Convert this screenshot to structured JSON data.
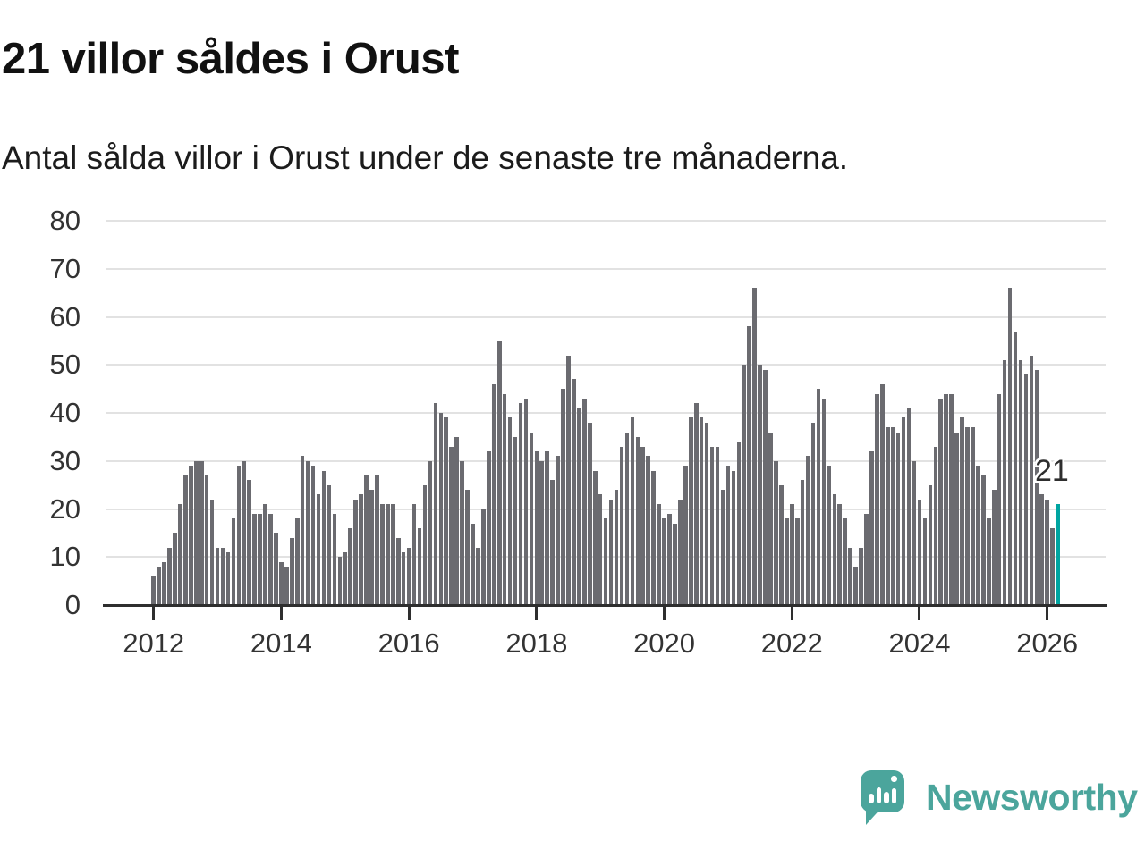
{
  "header": {
    "title": "21 villor såldes i Orust",
    "subtitle": "Antal sålda villor i Orust under de senaste tre månaderna."
  },
  "chart_data": {
    "type": "bar",
    "title": "21 villor såldes i Orust",
    "subtitle": "Antal sålda villor i Orust under de senaste tre månaderna.",
    "unit": "antal sålda villor (rullande 3 månader)",
    "start_month": "2012-01",
    "end_month": "2026-03",
    "values_by_year": {
      "2012": [
        6,
        8,
        9,
        12,
        15,
        21,
        27,
        29,
        30,
        30,
        27,
        22
      ],
      "2013": [
        12,
        12,
        11,
        18,
        29,
        30,
        26,
        19,
        19,
        21,
        19,
        15
      ],
      "2014": [
        9,
        8,
        14,
        18,
        31,
        30,
        29,
        23,
        28,
        25,
        19,
        10
      ],
      "2015": [
        11,
        16,
        22,
        23,
        27,
        24,
        27,
        21,
        21,
        21,
        14,
        11
      ],
      "2016": [
        12,
        21,
        16,
        25,
        30,
        42,
        40,
        39,
        33,
        35,
        30,
        24
      ],
      "2017": [
        17,
        12,
        20,
        32,
        46,
        55,
        44,
        39,
        35,
        42,
        43,
        36
      ],
      "2018": [
        32,
        30,
        32,
        26,
        31,
        45,
        52,
        47,
        41,
        43,
        38,
        28
      ],
      "2019": [
        23,
        18,
        22,
        24,
        33,
        36,
        39,
        35,
        33,
        31,
        28,
        21
      ],
      "2020": [
        18,
        19,
        17,
        22,
        29,
        39,
        42,
        39,
        38,
        33,
        33,
        24
      ],
      "2021": [
        29,
        28,
        34,
        50,
        58,
        66,
        50,
        49,
        36,
        30,
        25,
        18
      ],
      "2022": [
        21,
        18,
        26,
        31,
        38,
        45,
        43,
        29,
        23,
        21,
        18,
        12
      ],
      "2023": [
        8,
        12,
        19,
        32,
        44,
        46,
        37,
        37,
        36,
        39,
        41,
        30
      ],
      "2024": [
        22,
        18,
        25,
        33,
        43,
        44,
        44,
        36,
        39,
        37,
        37,
        29
      ],
      "2025": [
        27,
        18,
        24,
        44,
        51,
        66,
        57,
        51,
        48,
        52,
        49,
        23
      ],
      "2026": [
        22,
        16,
        21
      ]
    },
    "highlight": {
      "position": "last",
      "value": 21,
      "label": "21",
      "color": "#00a5a1"
    },
    "ylim": [
      0,
      80
    ],
    "y_ticks": [
      0,
      10,
      20,
      30,
      40,
      50,
      60,
      70,
      80
    ],
    "x_tick_years": [
      "2012",
      "2014",
      "2016",
      "2018",
      "2020",
      "2022",
      "2024",
      "2026"
    ],
    "grid": "horizontal",
    "legend": "none"
  },
  "annotation": {
    "label": "21"
  },
  "footer": {
    "brand": "Newsworthy"
  },
  "colors": {
    "bar": "#6b6b70",
    "highlight": "#00a5a1",
    "axis": "#2e2e2e",
    "grid": "#e2e2e2",
    "title_text": "#111111",
    "tick_text": "#333333",
    "brand": "#4ba59c"
  }
}
